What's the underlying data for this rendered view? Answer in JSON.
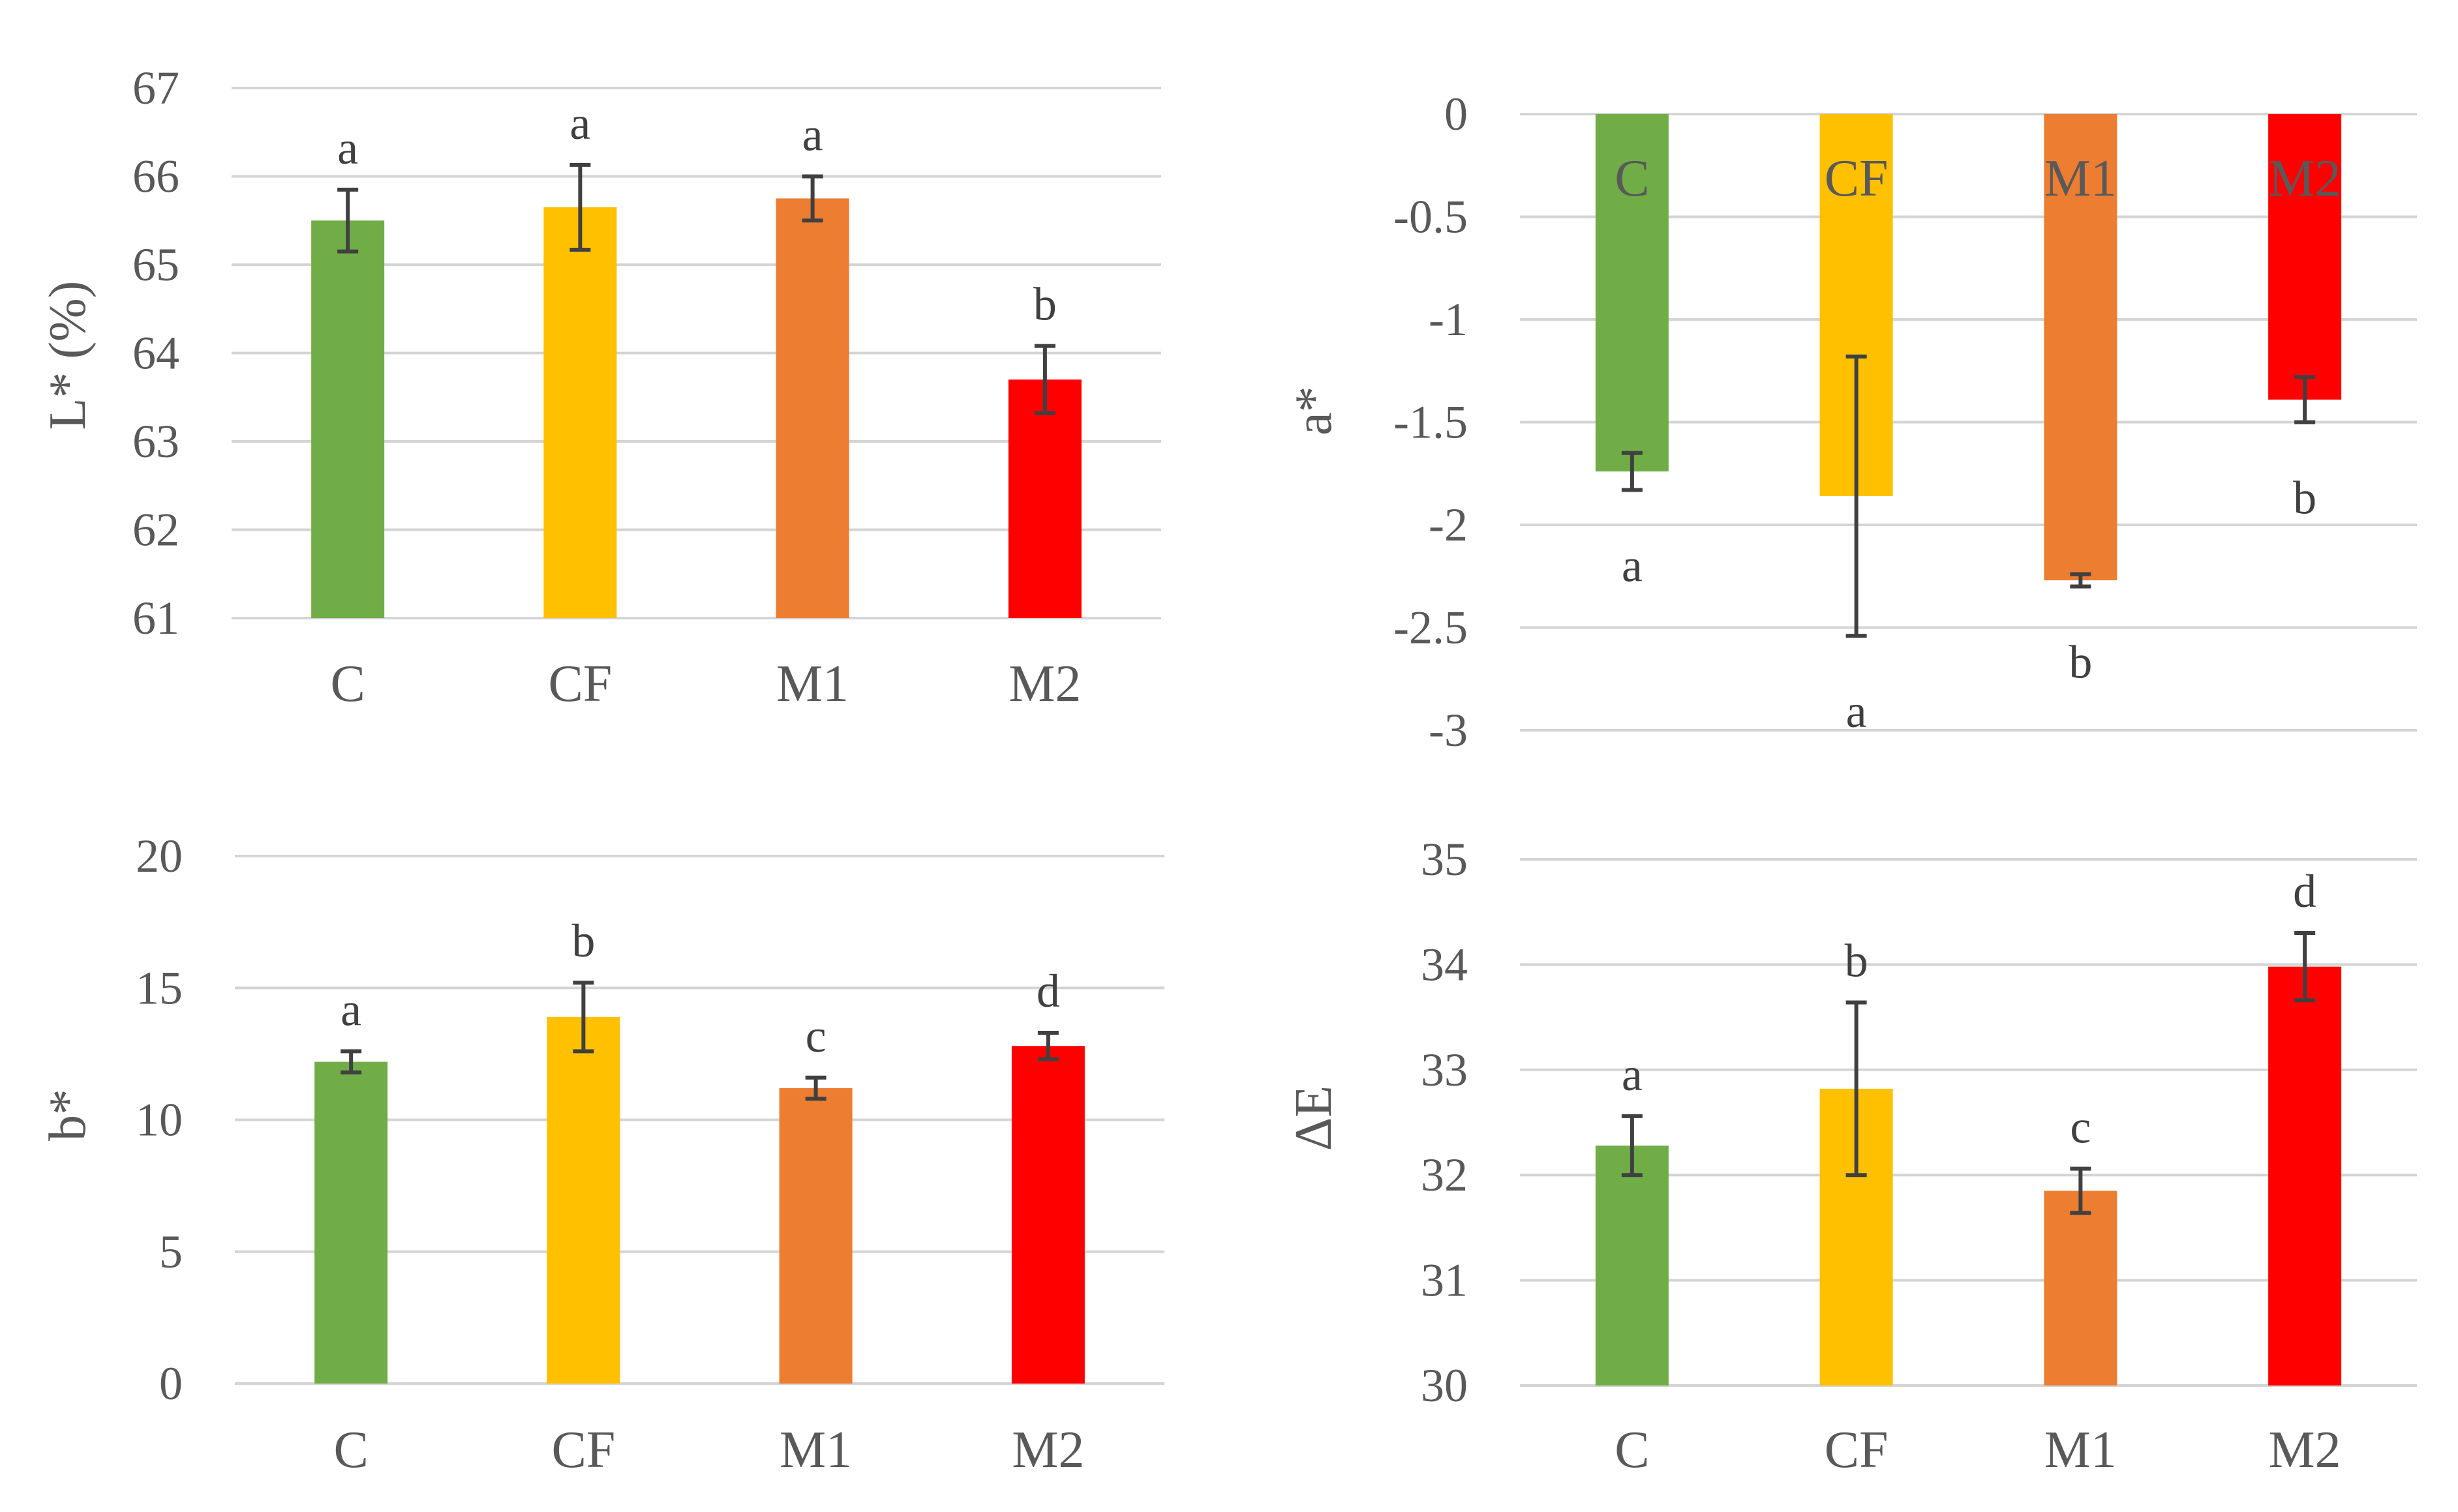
{
  "chart_data": [
    {
      "type": "bar",
      "id": "L",
      "ylabel": "L* (%)",
      "categories": [
        "C",
        "CF",
        "M1",
        "M2"
      ],
      "values": [
        65.5,
        65.65,
        65.75,
        63.7
      ],
      "errors": [
        0.35,
        0.48,
        0.25,
        0.38
      ],
      "letters": [
        "a",
        "a",
        "a",
        "b"
      ],
      "ylim": [
        61,
        67
      ],
      "ticks": [
        61,
        62,
        63,
        64,
        65,
        66,
        67
      ],
      "tick_labels": [
        "61",
        "62",
        "63",
        "64",
        "65",
        "66",
        "67"
      ],
      "colors": [
        "#70ad47",
        "#ffc000",
        "#ed7d31",
        "#ff0000"
      ],
      "category_labels_inside_bars": false
    },
    {
      "type": "bar",
      "id": "a",
      "ylabel": "a*",
      "categories": [
        "C",
        "CF",
        "M1",
        "M2"
      ],
      "values": [
        -1.74,
        -1.86,
        -2.27,
        -1.39
      ],
      "errors": [
        0.09,
        0.68,
        0.03,
        0.11
      ],
      "letters": [
        "a",
        "a",
        "b",
        "b"
      ],
      "ylim": [
        -3,
        0
      ],
      "ticks": [
        0,
        -0.5,
        -1,
        -1.5,
        -2,
        -2.5,
        -3
      ],
      "tick_labels": [
        "0",
        "-0.5",
        "-1",
        "-1.5",
        "-2",
        "-2.5",
        "-3"
      ],
      "colors": [
        "#70ad47",
        "#ffc000",
        "#ed7d31",
        "#ff0000"
      ],
      "category_labels_inside_bars": true
    },
    {
      "type": "bar",
      "id": "b",
      "ylabel": "b*",
      "categories": [
        "C",
        "CF",
        "M1",
        "M2"
      ],
      "values": [
        12.2,
        13.9,
        11.2,
        12.8
      ],
      "errors": [
        0.4,
        1.3,
        0.4,
        0.5
      ],
      "letters": [
        "a",
        "b",
        "c",
        "d"
      ],
      "ylim": [
        0,
        20
      ],
      "ticks": [
        0,
        5,
        10,
        15,
        20
      ],
      "tick_labels": [
        "0",
        "5",
        "10",
        "15",
        "20"
      ],
      "colors": [
        "#70ad47",
        "#ffc000",
        "#ed7d31",
        "#ff0000"
      ],
      "category_labels_inside_bars": false
    },
    {
      "type": "bar",
      "id": "dE",
      "ylabel": "ΔE",
      "categories": [
        "C",
        "CF",
        "M1",
        "M2"
      ],
      "values": [
        32.28,
        32.82,
        31.85,
        33.98
      ],
      "errors": [
        0.28,
        0.82,
        0.21,
        0.32
      ],
      "letters": [
        "a",
        "b",
        "c",
        "d"
      ],
      "ylim": [
        30,
        35
      ],
      "ticks": [
        30,
        31,
        32,
        33,
        34,
        35
      ],
      "tick_labels": [
        "30",
        "31",
        "32",
        "33",
        "34",
        "35"
      ],
      "colors": [
        "#70ad47",
        "#ffc000",
        "#ed7d31",
        "#ff0000"
      ],
      "category_labels_inside_bars": false
    }
  ]
}
